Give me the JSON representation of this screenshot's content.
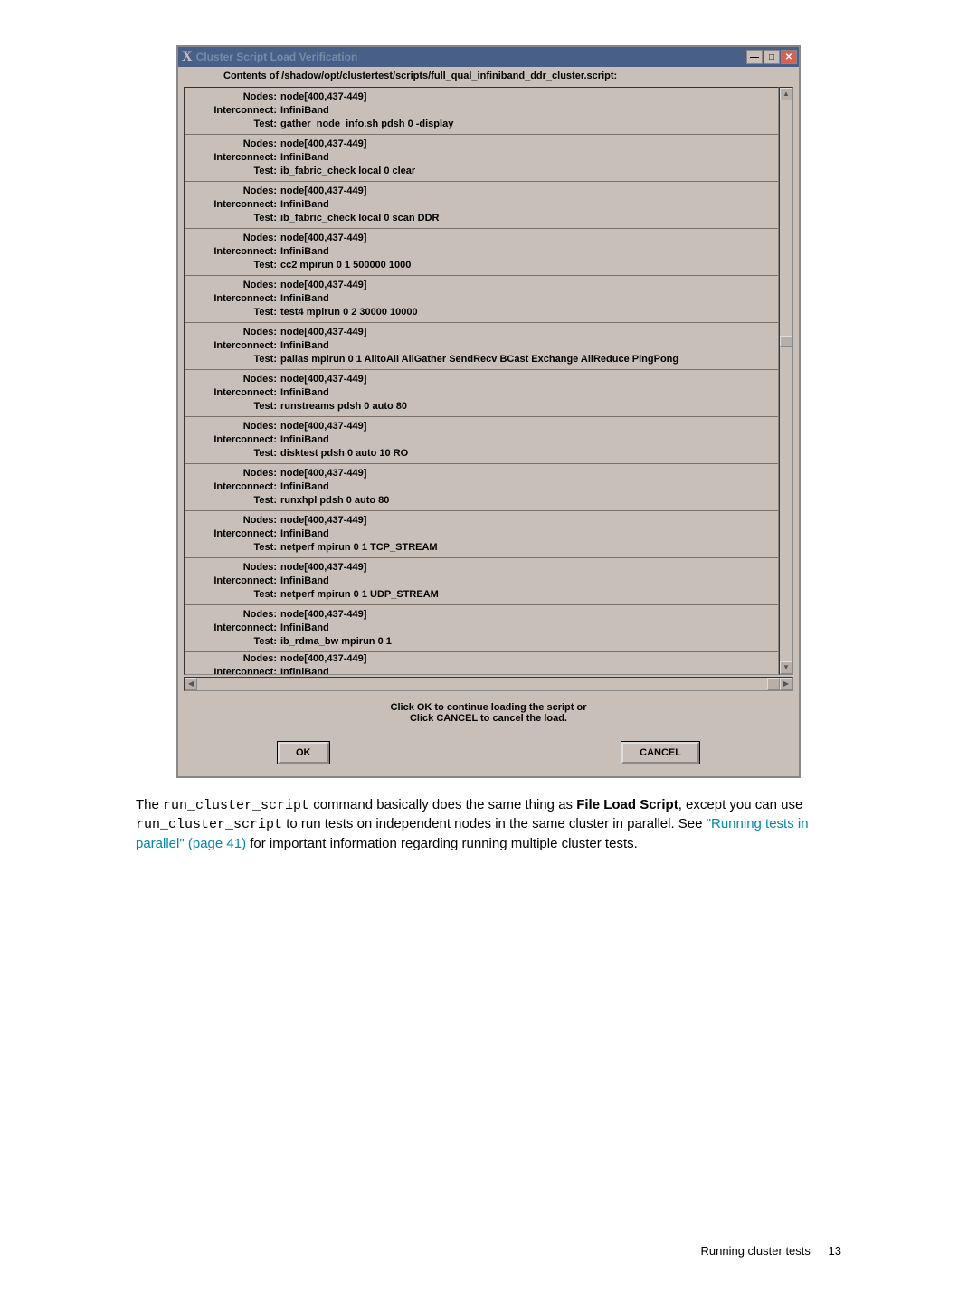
{
  "dialog": {
    "title": "Cluster Script Load Verification",
    "header": "Contents of /shadow/opt/clustertest/scripts/full_qual_infiniband_ddr_cluster.script:",
    "labels": {
      "nodes": "Nodes:",
      "interconnect": "Interconnect:",
      "test": "Test:"
    },
    "blocks": [
      {
        "nodes": "node[400,437-449]",
        "interconnect": "InfiniBand",
        "test": "gather_node_info.sh pdsh 0 -display"
      },
      {
        "nodes": "node[400,437-449]",
        "interconnect": "InfiniBand",
        "test": "ib_fabric_check local 0 clear"
      },
      {
        "nodes": "node[400,437-449]",
        "interconnect": "InfiniBand",
        "test": "ib_fabric_check local 0 scan DDR"
      },
      {
        "nodes": "node[400,437-449]",
        "interconnect": "InfiniBand",
        "test": "cc2 mpirun 0 1 500000 1000"
      },
      {
        "nodes": "node[400,437-449]",
        "interconnect": "InfiniBand",
        "test": "test4 mpirun 0 2 30000 10000"
      },
      {
        "nodes": "node[400,437-449]",
        "interconnect": "InfiniBand",
        "test": "pallas mpirun 0 1 AlltoAll AllGather SendRecv BCast Exchange AllReduce PingPong"
      },
      {
        "nodes": "node[400,437-449]",
        "interconnect": "InfiniBand",
        "test": "runstreams pdsh 0 auto 80"
      },
      {
        "nodes": "node[400,437-449]",
        "interconnect": "InfiniBand",
        "test": "disktest pdsh 0 auto 10 RO"
      },
      {
        "nodes": "node[400,437-449]",
        "interconnect": "InfiniBand",
        "test": "runxhpl pdsh 0 auto 80"
      },
      {
        "nodes": "node[400,437-449]",
        "interconnect": "InfiniBand",
        "test": "netperf mpirun 0 1 TCP_STREAM"
      },
      {
        "nodes": "node[400,437-449]",
        "interconnect": "InfiniBand",
        "test": "netperf mpirun 0 1 UDP_STREAM"
      },
      {
        "nodes": "node[400,437-449]",
        "interconnect": "InfiniBand",
        "test": "ib_rdma_bw mpirun 0 1"
      }
    ],
    "cutoff_nodes": "Nodes:  node[400,437-449]",
    "cutoff_interconnect": "Interconnect:  InfiniBand",
    "prompt_line1": "Click OK to continue loading the script or",
    "prompt_line2": "Click CANCEL to cancel the load.",
    "ok": "OK",
    "cancel": "CANCEL",
    "win_min": "—",
    "win_max": "□",
    "win_close": "✕"
  },
  "para": {
    "t1": "The ",
    "cmd1": "run_cluster_script",
    "t2": " command basically does the same thing as ",
    "bold": "File Load Script",
    "t3": ", except you can use ",
    "cmd2": "run_cluster_script",
    "t4": " to run tests on independent nodes in the same cluster in parallel. See ",
    "link": "\"Running tests in parallel\" (page 41)",
    "t5": " for important information regarding running multiple cluster tests."
  },
  "footer": {
    "text": "Running cluster tests",
    "page": "13"
  }
}
